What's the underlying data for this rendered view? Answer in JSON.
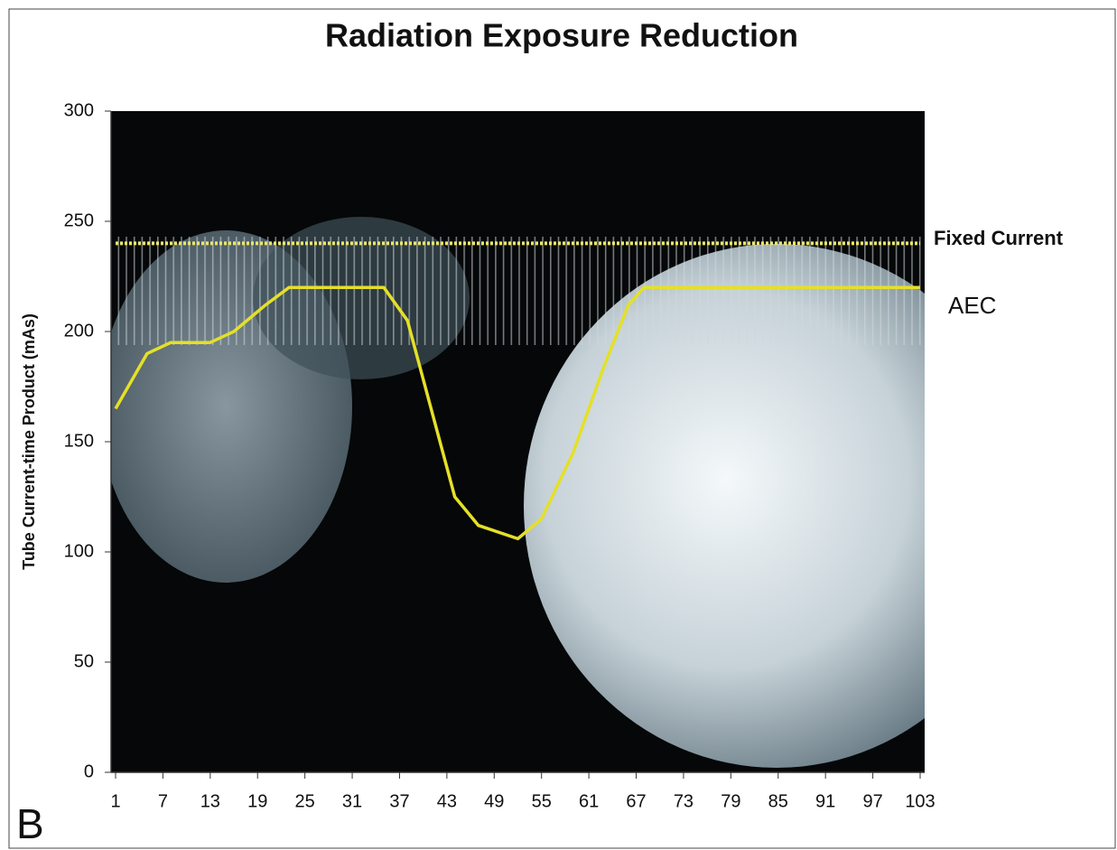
{
  "chart_data": {
    "type": "line",
    "title": "Radiation Exposure Reduction",
    "ylabel": "Tube Current-time Product (mAs)",
    "annotation": "B",
    "xlim": [
      1,
      103
    ],
    "xticks": [
      1,
      7,
      13,
      19,
      25,
      31,
      37,
      43,
      49,
      55,
      61,
      67,
      73,
      79,
      85,
      91,
      97,
      103
    ],
    "ylim": [
      0,
      300
    ],
    "yticks": [
      0,
      50,
      100,
      150,
      200,
      250,
      300
    ],
    "series": [
      {
        "name": "Fixed Current",
        "color": "#e8e66a",
        "x": [
          1,
          103
        ],
        "values": [
          240,
          240
        ]
      },
      {
        "name": "AEC",
        "color": "#e4e028",
        "x": [
          1,
          5,
          8,
          13,
          16,
          20,
          23,
          35,
          38,
          41,
          44,
          47,
          52,
          55,
          59,
          63,
          66,
          68,
          103
        ],
        "values": [
          165,
          190,
          195,
          195,
          200,
          212,
          220,
          220,
          205,
          165,
          125,
          112,
          106,
          115,
          145,
          185,
          212,
          220,
          220
        ]
      }
    ]
  }
}
